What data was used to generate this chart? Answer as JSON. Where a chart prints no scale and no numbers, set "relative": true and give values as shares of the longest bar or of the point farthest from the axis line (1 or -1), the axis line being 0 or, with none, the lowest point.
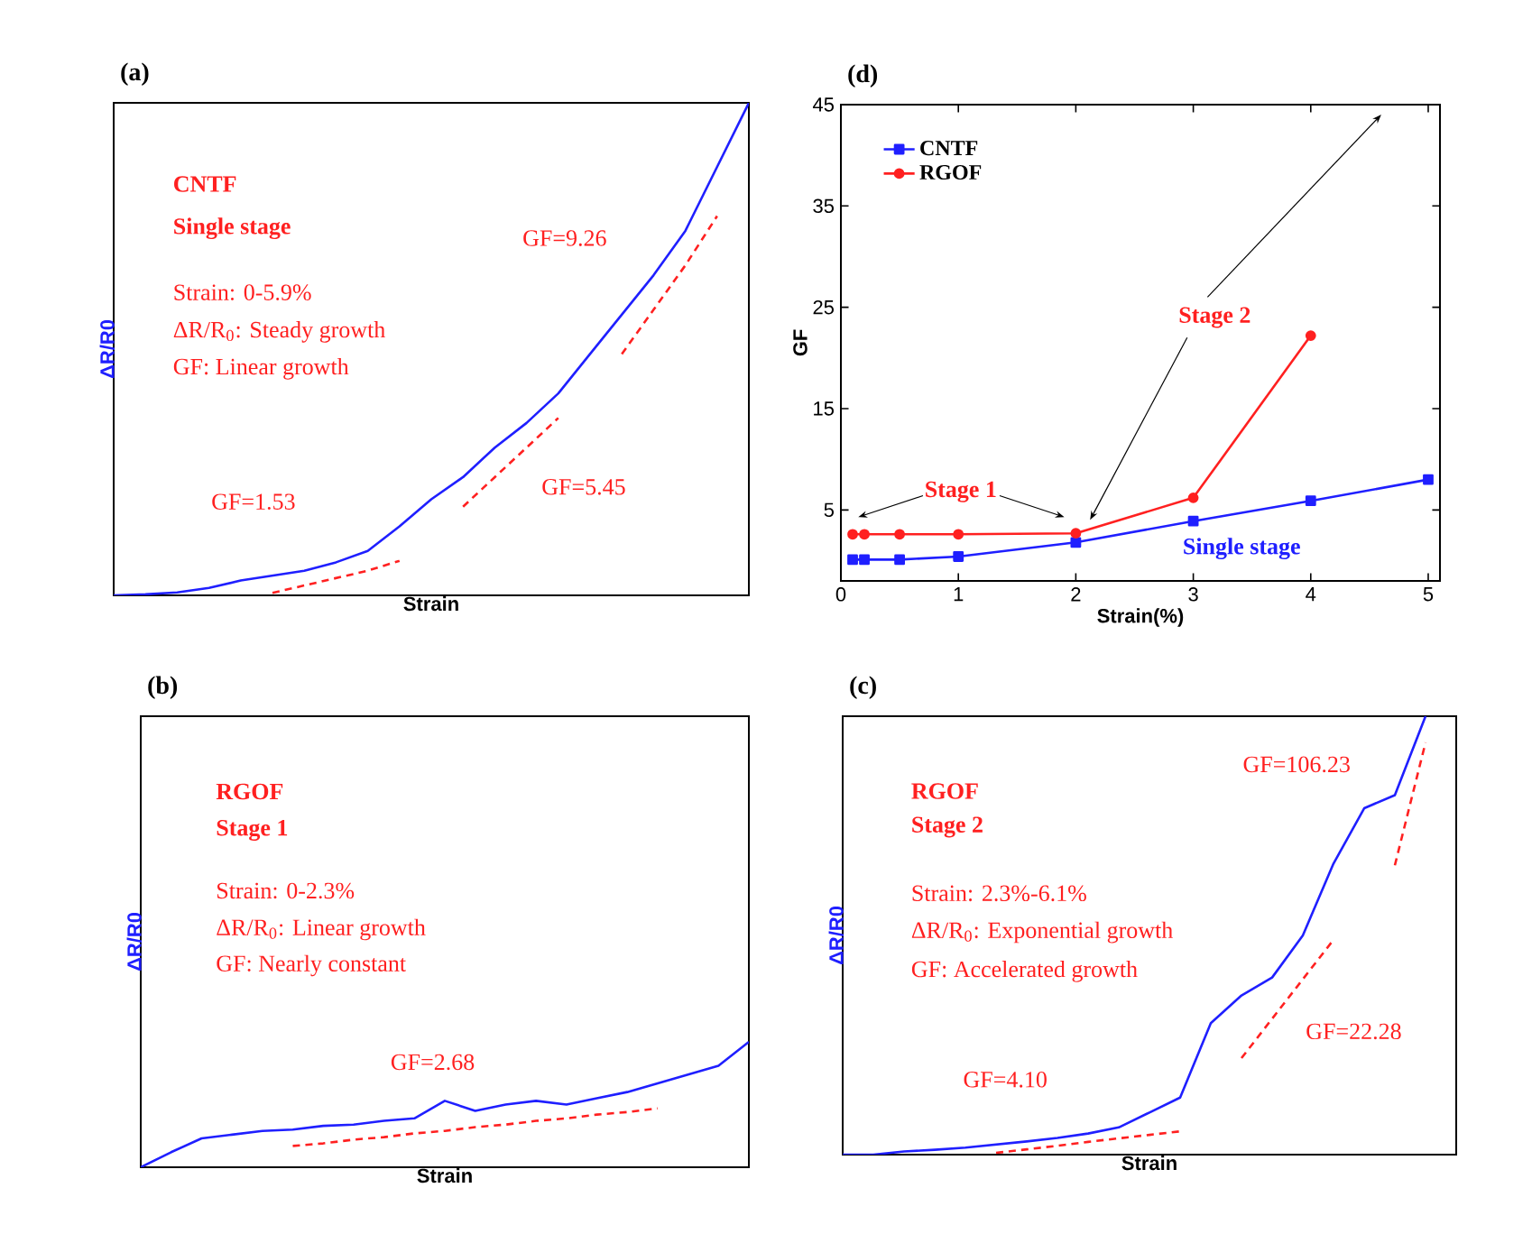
{
  "chart_data": [
    {
      "type": "line",
      "title": "(a)",
      "xlabel": "Strain",
      "ylabel": "ΔR/R0",
      "relative": true,
      "line_style": "solid",
      "categories": [
        null,
        null,
        null,
        null,
        null,
        null,
        null,
        null,
        null,
        null,
        null,
        null,
        null,
        null,
        null,
        null,
        null,
        null,
        null,
        null,
        null
      ],
      "annotations": [
        "CNTF",
        "Single stage",
        "Strain: 0-5.9%",
        "ΔR/R$_{0}$: Steady growth",
        "GF: Linear growth",
        "GF=1.53",
        "GF=5.45",
        "GF=9.26"
      ],
      "series": [
        {
          "color": "#1f1fff",
          "values": [
            0,
            0.002,
            0.006,
            0.015,
            0.03,
            0.04,
            0.05,
            0.067,
            0.09,
            0.14,
            0.195,
            0.24,
            0.3,
            0.35,
            0.41,
            0.49,
            0.57,
            0.65,
            0.74,
            0.87,
            1
          ]
        },
        {
          "color": "#ff2020",
          "line_style": "dashed",
          "values": [
            null,
            null,
            null,
            null,
            null,
            0.005,
            0.02,
            0.035,
            0.05,
            0.07,
            null,
            null,
            null,
            null,
            null,
            null,
            null,
            null,
            null,
            null,
            null
          ]
        },
        {
          "color": "#ff2020",
          "line_style": "dashed",
          "values": [
            null,
            null,
            null,
            null,
            null,
            null,
            null,
            null,
            null,
            null,
            null,
            0.18,
            0.24,
            0.3,
            0.36,
            null,
            null,
            null,
            null,
            null,
            null
          ]
        },
        {
          "color": "#ff2020",
          "line_style": "dashed",
          "values": [
            null,
            null,
            null,
            null,
            null,
            null,
            null,
            null,
            null,
            null,
            null,
            null,
            null,
            null,
            null,
            null,
            0.49,
            0.58,
            0.67,
            0.77,
            null
          ]
        }
      ]
    },
    {
      "type": "line",
      "title": "(d)",
      "xlabel": "Strain(%)",
      "ylabel": "GF",
      "xlim": [
        0,
        5.1
      ],
      "ylim": [
        -2,
        45
      ],
      "xticks": [
        0,
        1,
        2,
        3,
        4,
        5
      ],
      "yticks": [
        5,
        15,
        25,
        35,
        45
      ],
      "legend": "top left",
      "grid": false,
      "annotations": [
        "Stage 1",
        "Stage 2",
        "Single stage"
      ],
      "series": [
        {
          "name": "CNTF",
          "color": "#1f1fff",
          "marker": "square",
          "x": [
            0.1,
            0.2,
            0.5,
            1,
            2,
            3,
            4,
            5
          ],
          "values": [
            0.1,
            0.1,
            0.1,
            0.4,
            1.8,
            3.9,
            5.9,
            8.0
          ]
        },
        {
          "name": "RGOF",
          "color": "#ff2020",
          "marker": "circle",
          "x": [
            0.1,
            0.2,
            0.5,
            1,
            2,
            3,
            4
          ],
          "values": [
            2.6,
            2.6,
            2.6,
            2.6,
            2.7,
            6.2,
            22.2
          ]
        }
      ]
    },
    {
      "type": "line",
      "title": "(b)",
      "xlabel": "Strain",
      "ylabel": "ΔR/R0",
      "relative": true,
      "line_style": "solid",
      "categories": [
        null,
        null,
        null,
        null,
        null,
        null,
        null,
        null,
        null,
        null,
        null,
        null,
        null,
        null,
        null,
        null,
        null,
        null,
        null,
        null,
        null
      ],
      "annotations": [
        "RGOF",
        "Stage 1",
        "Strain: 0-2.3%",
        "ΔR/R$_{0}$: Linear growth",
        "GF: Nearly constant",
        "GF=2.68"
      ],
      "series": [
        {
          "color": "#1f1fff",
          "values": [
            0,
            0.12,
            0.23,
            0.26,
            0.29,
            0.3,
            0.33,
            0.34,
            0.37,
            0.39,
            0.53,
            0.45,
            0.5,
            0.53,
            0.5,
            0.55,
            0.6,
            0.67,
            0.74,
            0.81,
            1
          ]
        },
        {
          "color": "#ff2020",
          "line_style": "dashed",
          "values": [
            null,
            null,
            null,
            null,
            null,
            0.17,
            0.19,
            0.22,
            0.24,
            0.27,
            0.29,
            0.32,
            0.34,
            0.37,
            0.39,
            0.42,
            0.44,
            0.47,
            null,
            null,
            null
          ]
        }
      ]
    },
    {
      "type": "line",
      "title": "(c)",
      "xlabel": "Strain",
      "ylabel": "ΔR/R0",
      "relative": true,
      "line_style": "solid",
      "categories": [
        null,
        null,
        null,
        null,
        null,
        null,
        null,
        null,
        null,
        null,
        null,
        null,
        null,
        null,
        null,
        null,
        null,
        null,
        null,
        null,
        null
      ],
      "annotations": [
        "RGOF",
        "Stage 2",
        "Strain: 2.3%-6.1%",
        "ΔR/R$_{0}$: Exponential growth",
        "GF: Accelerated growth",
        "GF=4.10",
        "GF=22.28",
        "GF=106.23"
      ],
      "series": [
        {
          "color": "#1f1fff",
          "values": [
            0,
            0,
            0.007,
            0.011,
            0.016,
            0.023,
            0.03,
            0.038,
            0.048,
            0.062,
            0.096,
            0.13,
            0.3,
            0.363,
            0.404,
            0.5,
            0.664,
            0.79,
            0.82,
            1,
            null
          ]
        },
        {
          "color": "#ff2020",
          "line_style": "dashed",
          "values": [
            null,
            null,
            null,
            null,
            null,
            0.004,
            0.012,
            0.02,
            0.029,
            0.037,
            0.045,
            0.053,
            null,
            null,
            null,
            null,
            null,
            null,
            null,
            null,
            null
          ]
        },
        {
          "color": "#ff2020",
          "line_style": "dashed",
          "values": [
            null,
            null,
            null,
            null,
            null,
            null,
            null,
            null,
            null,
            null,
            null,
            null,
            null,
            0.22,
            0.31,
            0.4,
            0.49,
            null,
            null,
            null,
            null
          ]
        },
        {
          "color": "#ff2020",
          "line_style": "dashed",
          "values": [
            null,
            null,
            null,
            null,
            null,
            null,
            null,
            null,
            null,
            null,
            null,
            null,
            null,
            null,
            null,
            null,
            null,
            null,
            0.66,
            0.94,
            null
          ]
        }
      ]
    }
  ]
}
